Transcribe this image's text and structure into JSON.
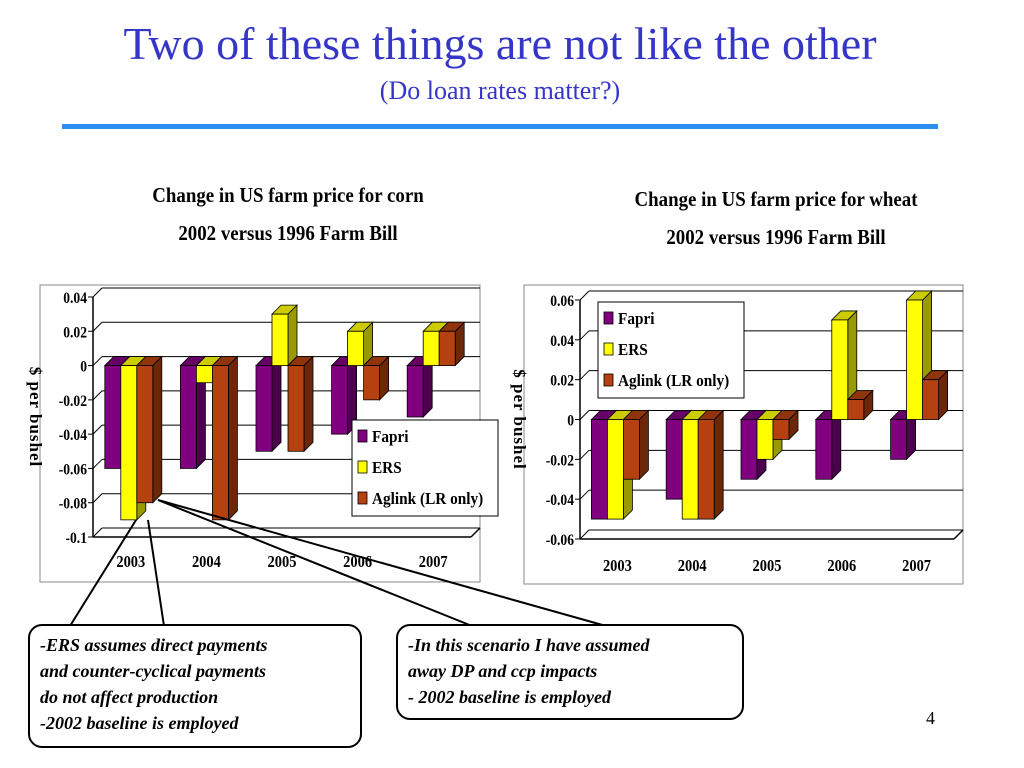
{
  "slide": {
    "title": "Two of these things are not like the other",
    "subtitle": "(Do loan rates matter?)",
    "page_number": "4"
  },
  "colors": {
    "title": "#3535c8",
    "rule": "#2e8ff0",
    "Fapri": "#800080",
    "ERS": "#ffff00",
    "Aglink (LR only)": "#b4410f"
  },
  "notes": {
    "left": [
      "-ERS assumes direct payments",
      "and counter-cyclical payments",
      "do not affect production",
      "-2002 baseline is employed"
    ],
    "right": [
      "-In this scenario I have  assumed",
      "away DP and ccp impacts",
      "- 2002 baseline is employed"
    ]
  },
  "chart_data": [
    {
      "type": "bar",
      "title": "Change in US farm price for corn",
      "subtitle": "2002 versus 1996 Farm Bill",
      "ylabel": "$ per bushel",
      "categories": [
        "2003",
        "2004",
        "2005",
        "2006",
        "2007"
      ],
      "series": [
        {
          "name": "Fapri",
          "values": [
            -0.06,
            -0.06,
            -0.05,
            -0.04,
            -0.03
          ]
        },
        {
          "name": "ERS",
          "values": [
            -0.09,
            -0.01,
            0.03,
            0.02,
            0.02
          ]
        },
        {
          "name": "Aglink (LR only)",
          "values": [
            -0.08,
            -0.09,
            -0.05,
            -0.02,
            0.02
          ]
        }
      ],
      "ylim": [
        -0.1,
        0.04
      ],
      "yticks": [
        "0.04",
        "0.02",
        "0",
        "-0.02",
        "-0.04",
        "-0.06",
        "-0.08",
        "-0.1"
      ],
      "grid": true,
      "legend": "bottom-right"
    },
    {
      "type": "bar",
      "title": "Change in US farm price for wheat",
      "subtitle": "2002 versus 1996 Farm Bill",
      "ylabel": "$ per bushel",
      "categories": [
        "2003",
        "2004",
        "2005",
        "2006",
        "2007"
      ],
      "series": [
        {
          "name": "Fapri",
          "values": [
            -0.05,
            -0.04,
            -0.03,
            -0.03,
            -0.02
          ]
        },
        {
          "name": "ERS",
          "values": [
            -0.05,
            -0.05,
            -0.02,
            0.05,
            0.06
          ]
        },
        {
          "name": "Aglink (LR only)",
          "values": [
            -0.03,
            -0.05,
            -0.01,
            0.01,
            0.02
          ]
        }
      ],
      "ylim": [
        -0.06,
        0.06
      ],
      "yticks": [
        "0.06",
        "0.04",
        "0.02",
        "0",
        "-0.02",
        "-0.04",
        "-0.06"
      ],
      "grid": true,
      "legend": "top-left"
    }
  ]
}
